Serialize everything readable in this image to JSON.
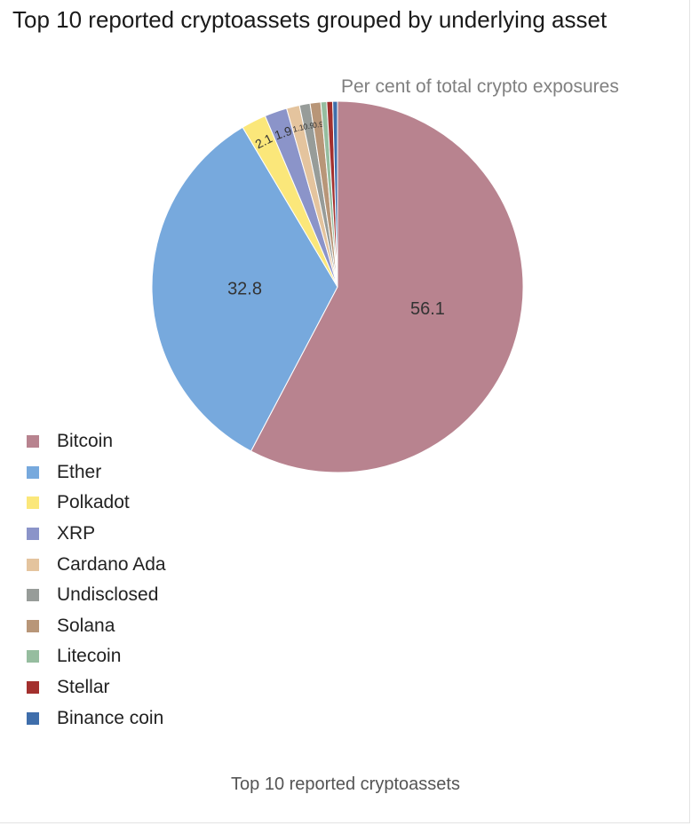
{
  "chart_data": {
    "type": "pie",
    "title": "Top 10 reported cryptoassets grouped by underlying asset",
    "subtitle": "Per cent of total crypto exposures",
    "caption": "Top 10 reported cryptoassets",
    "legend_position": "bottom-left",
    "slices": [
      {
        "label": "Bitcoin",
        "value": 56.1,
        "color": "#b8838f",
        "data_label": "56.1"
      },
      {
        "label": "Ether",
        "value": 32.8,
        "color": "#77a9dd",
        "data_label": "32.8"
      },
      {
        "label": "Polkadot",
        "value": 2.1,
        "color": "#fbe77a",
        "data_label": "2.1"
      },
      {
        "label": "XRP",
        "value": 1.9,
        "color": "#8b94c9",
        "data_label": "1.9"
      },
      {
        "label": "Cardano Ada",
        "value": 1.1,
        "color": "#e4c49e",
        "data_label": "1.1"
      },
      {
        "label": "Undisclosed",
        "value": 0.9,
        "color": "#979c99",
        "data_label": "0.9"
      },
      {
        "label": "Solana",
        "value": 0.9,
        "color": "#b89678",
        "data_label": "0.9"
      },
      {
        "label": "Litecoin",
        "value": 0.5,
        "color": "#96bd9f",
        "data_label": ""
      },
      {
        "label": "Stellar",
        "value": 0.5,
        "color": "#a3302e",
        "data_label": ""
      },
      {
        "label": "Binance coin",
        "value": 0.4,
        "color": "#3f6eab",
        "data_label": ""
      }
    ]
  }
}
